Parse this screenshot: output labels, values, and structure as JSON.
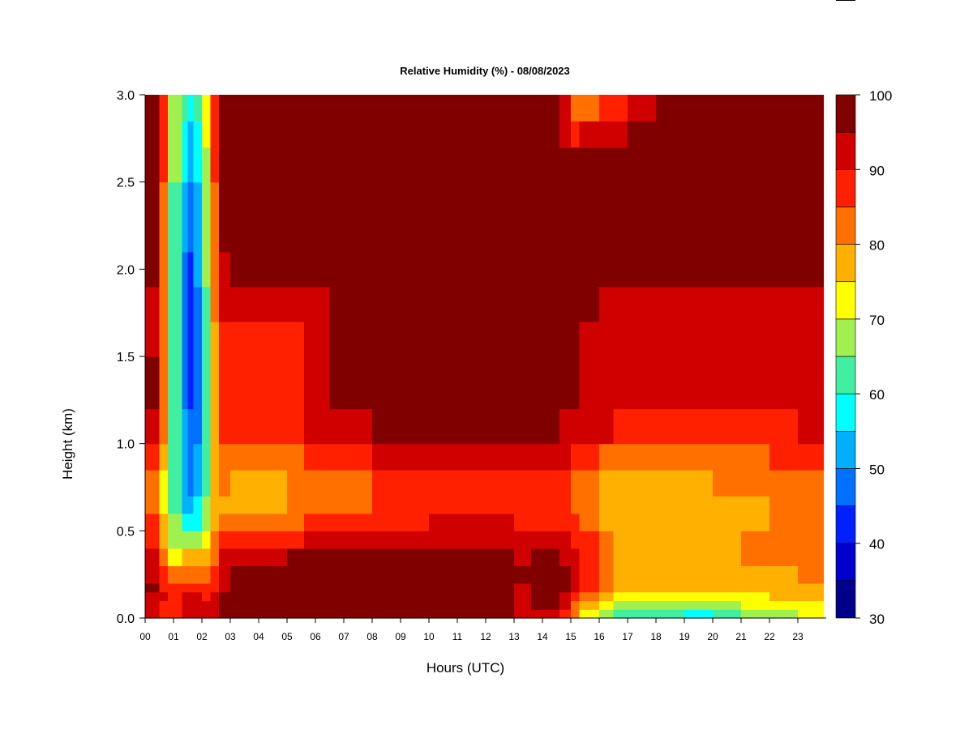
{
  "chart_data": {
    "type": "heatmap",
    "title": "Relative Humidity (%) - 08/08/2023",
    "xlabel": "Hours (UTC)",
    "ylabel": "Height (km)",
    "xlim": [
      0,
      24
    ],
    "ylim": [
      0,
      3
    ],
    "x_ticks": [
      {
        "value": 0,
        "label": "00"
      },
      {
        "value": 1,
        "label": "01"
      },
      {
        "value": 2,
        "label": "02"
      },
      {
        "value": 3,
        "label": "03"
      },
      {
        "value": 4,
        "label": "04"
      },
      {
        "value": 5,
        "label": "05"
      },
      {
        "value": 6,
        "label": "06"
      },
      {
        "value": 7,
        "label": "07"
      },
      {
        "value": 8,
        "label": "08"
      },
      {
        "value": 9,
        "label": "09"
      },
      {
        "value": 10,
        "label": "10"
      },
      {
        "value": 11,
        "label": "11"
      },
      {
        "value": 12,
        "label": "12"
      },
      {
        "value": 13,
        "label": "13"
      },
      {
        "value": 14,
        "label": "14"
      },
      {
        "value": 15,
        "label": "15"
      },
      {
        "value": 16,
        "label": "16"
      },
      {
        "value": 17,
        "label": "17"
      },
      {
        "value": 18,
        "label": "18"
      },
      {
        "value": 19,
        "label": "19"
      },
      {
        "value": 20,
        "label": "20"
      },
      {
        "value": 21,
        "label": "21"
      },
      {
        "value": 22,
        "label": "22"
      },
      {
        "value": 23,
        "label": "23"
      }
    ],
    "y_ticks": [
      {
        "value": 0.0,
        "label": "0.0"
      },
      {
        "value": 0.5,
        "label": "0.5"
      },
      {
        "value": 1.0,
        "label": "1.0"
      },
      {
        "value": 1.5,
        "label": "1.5"
      },
      {
        "value": 2.0,
        "label": "2.0"
      },
      {
        "value": 2.5,
        "label": "2.5"
      },
      {
        "value": 3.0,
        "label": "3.0"
      }
    ],
    "colorbar": {
      "min": 30,
      "max": 100,
      "levels": [
        30,
        35,
        40,
        45,
        50,
        55,
        60,
        65,
        70,
        75,
        80,
        85,
        90,
        95,
        100
      ],
      "colors": [
        "#00008b",
        "#0000cd",
        "#0020ff",
        "#0070ff",
        "#00b0ff",
        "#00ffff",
        "#40f0a0",
        "#a0f050",
        "#ffff00",
        "#ffb000",
        "#ff7000",
        "#ff2000",
        "#d00000",
        "#800000"
      ],
      "tick_labels": [
        {
          "value": 30,
          "label": "30"
        },
        {
          "value": 40,
          "label": "40"
        },
        {
          "value": 50,
          "label": "50"
        },
        {
          "value": 60,
          "label": "60"
        },
        {
          "value": 70,
          "label": "70"
        },
        {
          "value": 80,
          "label": "80"
        },
        {
          "value": 90,
          "label": "90"
        },
        {
          "value": 100,
          "label": "100"
        }
      ]
    },
    "hour_breakpoints": [
      0,
      0.5,
      0.8,
      1.3,
      1.5,
      1.7,
      2.0,
      2.3,
      2.6,
      3.0,
      4.0,
      5.0,
      5.6,
      6.5,
      8.0,
      10.0,
      12.0,
      13.0,
      13.3,
      13.6,
      14.2,
      14.6,
      15.0,
      15.3,
      16.0,
      16.5,
      17.0,
      18.0,
      19.0,
      20.0,
      21.0,
      22.0,
      23.0,
      23.9
    ],
    "height_breakpoints": [
      0,
      0.05,
      0.1,
      0.15,
      0.2,
      0.3,
      0.4,
      0.5,
      0.6,
      0.7,
      0.85,
      1.0,
      1.2,
      1.5,
      1.7,
      1.9,
      2.1,
      2.5,
      2.7,
      2.85,
      3.0
    ],
    "profiles": [
      {
        "hour": 0,
        "rh": [
          90,
          92,
          95,
          98,
          98,
          97,
          95,
          92,
          90,
          89,
          93,
          97,
          98,
          98,
          92,
          94,
          98,
          99,
          99,
          99,
          99
        ]
      },
      {
        "hour": 0.5,
        "rh": [
          88,
          90,
          92,
          94,
          94,
          90,
          86,
          82,
          78,
          76,
          80,
          86,
          90,
          94,
          92,
          94,
          96,
          97,
          97,
          97,
          97
        ]
      },
      {
        "hour": 0.8,
        "rh": [
          85,
          86,
          88,
          88,
          82,
          76,
          72,
          70,
          70,
          70,
          70,
          72,
          72,
          72,
          72,
          72,
          72,
          72,
          74,
          74,
          76
        ]
      },
      {
        "hour": 1.3,
        "rh": [
          90,
          90,
          92,
          90,
          84,
          78,
          72,
          64,
          58,
          56,
          56,
          56,
          55,
          54,
          54,
          55,
          56,
          58,
          60,
          62,
          64
        ]
      },
      {
        "hour": 1.5,
        "rh": [
          92,
          92,
          94,
          92,
          86,
          80,
          74,
          60,
          52,
          50,
          48,
          46,
          44,
          42,
          40,
          42,
          46,
          50,
          54,
          56,
          58
        ]
      },
      {
        "hour": 1.7,
        "rh": [
          93,
          93,
          94,
          92,
          86,
          80,
          72,
          60,
          52,
          50,
          48,
          46,
          44,
          40,
          38,
          40,
          44,
          48,
          52,
          54,
          56
        ]
      },
      {
        "hour": 2.0,
        "rh": [
          90,
          90,
          90,
          86,
          82,
          78,
          74,
          66,
          60,
          58,
          56,
          55,
          54,
          54,
          56,
          58,
          60,
          62,
          64,
          66,
          66
        ]
      },
      {
        "hour": 2.3,
        "rh": [
          92,
          92,
          90,
          88,
          84,
          80,
          78,
          74,
          72,
          72,
          72,
          72,
          72,
          72,
          72,
          72,
          74,
          76,
          76,
          76,
          78
        ]
      },
      {
        "hour": 2.6,
        "rh": [
          95,
          95,
          95,
          94,
          92,
          90,
          88,
          84,
          80,
          79,
          80,
          84,
          86,
          87,
          88,
          90,
          92,
          95,
          95,
          95,
          95
        ]
      },
      {
        "hour": 3.0,
        "rh": [
          95,
          96,
          97,
          97,
          96,
          94,
          90,
          84,
          80,
          80,
          82,
          86,
          88,
          89,
          90,
          94,
          96,
          97,
          97,
          97,
          97
        ]
      },
      {
        "hour": 4.0,
        "rh": [
          96,
          97,
          98,
          98,
          97,
          95,
          90,
          82,
          78,
          77,
          80,
          84,
          86,
          88,
          89,
          94,
          97,
          98,
          98,
          98,
          98
        ]
      },
      {
        "hour": 5.0,
        "rh": [
          95,
          96,
          98,
          99,
          99,
          98,
          93,
          84,
          79,
          78,
          80,
          85,
          87,
          88,
          88,
          94,
          97,
          98,
          98,
          98,
          98
        ]
      },
      {
        "hour": 5.6,
        "rh": [
          96,
          97,
          98,
          99,
          99,
          98,
          93,
          86,
          82,
          81,
          84,
          88,
          90,
          90,
          88,
          95,
          98,
          99,
          99,
          99,
          99
        ]
      },
      {
        "hour": 6.5,
        "rh": [
          94,
          97,
          98,
          99,
          99,
          98,
          95,
          88,
          84,
          83,
          85,
          92,
          96,
          97,
          97,
          98,
          99,
          99,
          99,
          99,
          99
        ]
      },
      {
        "hour": 8.0,
        "rh": [
          94,
          97,
          98,
          99,
          99,
          98,
          96,
          90,
          86,
          85,
          86,
          93,
          97,
          98,
          97,
          98,
          99,
          99,
          99,
          99,
          99
        ]
      },
      {
        "hour": 10.0,
        "rh": [
          95,
          97,
          98,
          99,
          99,
          98,
          97,
          92,
          88,
          87,
          88,
          95,
          97,
          98,
          98,
          98,
          99,
          99,
          99,
          99,
          99
        ]
      },
      {
        "hour": 12.0,
        "rh": [
          95,
          97,
          98,
          99,
          99,
          98,
          97,
          92,
          89,
          88,
          89,
          95,
          97,
          98,
          98,
          98,
          99,
          99,
          99,
          99,
          99
        ]
      },
      {
        "hour": 13.0,
        "rh": [
          93,
          95,
          97,
          98,
          98,
          97,
          95,
          91,
          88,
          87,
          88,
          95,
          97,
          97,
          97,
          98,
          99,
          99,
          99,
          99,
          99
        ]
      },
      {
        "hour": 13.3,
        "rh": [
          88,
          90,
          92,
          91,
          92,
          93,
          93,
          90,
          88,
          87,
          88,
          95,
          96,
          96,
          96,
          97,
          98,
          98,
          98,
          98,
          98
        ]
      },
      {
        "hour": 13.6,
        "rh": [
          93,
          95,
          97,
          98,
          98,
          97,
          95,
          91,
          88,
          87,
          88,
          95,
          97,
          97,
          97,
          98,
          99,
          99,
          99,
          99,
          99
        ]
      },
      {
        "hour": 14.2,
        "rh": [
          94,
          96,
          98,
          98,
          98,
          97,
          94,
          90,
          88,
          87,
          88,
          94,
          96,
          97,
          97,
          98,
          99,
          99,
          99,
          99,
          99
        ]
      },
      {
        "hour": 14.6,
        "rh": [
          90,
          94,
          96,
          97,
          97,
          96,
          94,
          90,
          88,
          87,
          88,
          94,
          96,
          97,
          97,
          98,
          99,
          99,
          99,
          98,
          97
        ]
      },
      {
        "hour": 15.0,
        "rh": [
          80,
          84,
          88,
          92,
          94,
          94,
          92,
          88,
          86,
          85,
          86,
          93,
          96,
          97,
          97,
          98,
          99,
          98,
          94,
          88,
          84
        ]
      },
      {
        "hour": 15.3,
        "rh": [
          76,
          80,
          86,
          90,
          92,
          92,
          90,
          86,
          84,
          83,
          84,
          92,
          95,
          96,
          96,
          98,
          99,
          97,
          92,
          84,
          76
        ]
      },
      {
        "hour": 16.0,
        "rh": [
          68,
          74,
          78,
          82,
          86,
          88,
          86,
          82,
          80,
          80,
          82,
          90,
          94,
          94,
          93,
          96,
          98,
          98,
          95,
          90,
          86
        ]
      },
      {
        "hour": 16.5,
        "rh": [
          62,
          68,
          72,
          76,
          80,
          82,
          80,
          78,
          76,
          76,
          79,
          88,
          93,
          93,
          92,
          95,
          98,
          98,
          94,
          86,
          80
        ]
      },
      {
        "hour": 17.0,
        "rh": [
          60,
          66,
          70,
          74,
          78,
          79,
          78,
          76,
          75,
          75,
          78,
          86,
          91,
          92,
          90,
          93,
          97,
          98,
          96,
          92,
          88
        ]
      },
      {
        "hour": 18.0,
        "rh": [
          58,
          64,
          70,
          74,
          78,
          80,
          79,
          78,
          78,
          78,
          80,
          87,
          91,
          92,
          90,
          93,
          97,
          99,
          99,
          99,
          99
        ]
      },
      {
        "hour": 19.0,
        "rh": [
          57,
          63,
          70,
          75,
          78,
          80,
          79,
          78,
          77,
          78,
          80,
          86,
          90,
          91,
          90,
          93,
          97,
          99,
          99,
          99,
          99
        ]
      },
      {
        "hour": 20.0,
        "rh": [
          56,
          62,
          68,
          74,
          78,
          80,
          79,
          77,
          77,
          78,
          80,
          86,
          90,
          91,
          90,
          93,
          97,
          99,
          99,
          99,
          99
        ]
      },
      {
        "hour": 21.0,
        "rh": [
          60,
          66,
          72,
          76,
          78,
          80,
          80,
          80,
          79,
          80,
          82,
          87,
          91,
          92,
          91,
          94,
          97,
          99,
          99,
          99,
          99
        ]
      },
      {
        "hour": 22.0,
        "rh": [
          64,
          70,
          74,
          77,
          78,
          80,
          80,
          80,
          80,
          80,
          82,
          88,
          91,
          92,
          91,
          94,
          97,
          99,
          99,
          99,
          99
        ]
      },
      {
        "hour": 23.0,
        "rh": [
          68,
          72,
          76,
          78,
          80,
          81,
          81,
          80,
          80,
          81,
          83,
          88,
          92,
          92,
          92,
          95,
          98,
          99,
          99,
          99,
          99
        ]
      },
      {
        "hour": 23.9,
        "rh": [
          70,
          74,
          77,
          79,
          80,
          81,
          81,
          80,
          80,
          81,
          83,
          88,
          92,
          92,
          92,
          95,
          98,
          99,
          99,
          99,
          99
        ]
      }
    ]
  }
}
